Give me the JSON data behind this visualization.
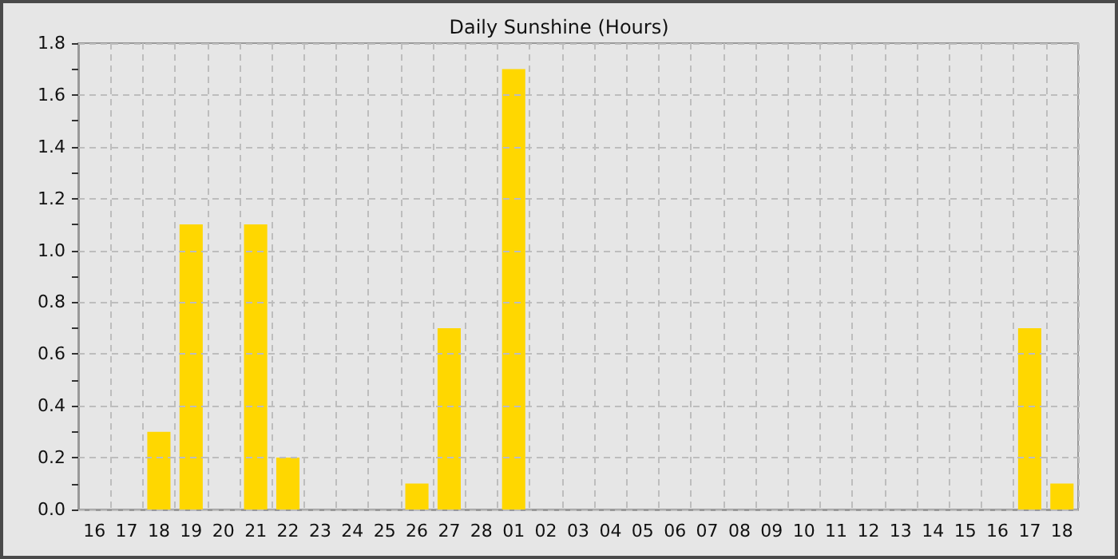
{
  "chart_data": {
    "type": "bar",
    "title": "Daily Sunshine (Hours)",
    "categories": [
      "16",
      "17",
      "18",
      "19",
      "20",
      "21",
      "22",
      "23",
      "24",
      "25",
      "26",
      "27",
      "28",
      "01",
      "02",
      "03",
      "04",
      "05",
      "06",
      "07",
      "08",
      "09",
      "10",
      "11",
      "12",
      "13",
      "14",
      "15",
      "16",
      "17",
      "18"
    ],
    "values": [
      0,
      0,
      0.3,
      1.1,
      0,
      1.1,
      0.2,
      0,
      0,
      0,
      0.1,
      0.7,
      0,
      1.7,
      0,
      0,
      0,
      0,
      0,
      0,
      0,
      0,
      0,
      0,
      0,
      0,
      0,
      0,
      0,
      0.7,
      0.1
    ],
    "color": "#ffd700",
    "ylim": [
      0,
      1.8
    ],
    "yticks": [
      {
        "value": 0,
        "label": "0.0"
      },
      {
        "value": 0.1,
        "label": null
      },
      0.2,
      {
        "value": 0.3,
        "label": null
      },
      0.4,
      {
        "value": 0.5,
        "label": null
      },
      0.6,
      {
        "value": 0.7,
        "label": null
      },
      0.8,
      {
        "value": 0.9,
        "label": null
      },
      {
        "value": 1,
        "label": "1.0"
      },
      {
        "value": 1.1,
        "label": null
      },
      1.2,
      {
        "value": 1.3,
        "label": null
      },
      1.4,
      {
        "value": 1.5,
        "label": null
      },
      1.6,
      {
        "value": 1.7,
        "label": null
      },
      1.8
    ],
    "grid": true
  }
}
